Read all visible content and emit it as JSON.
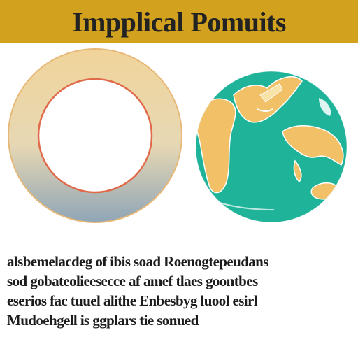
{
  "header": {
    "title": "Impplical Pomuits"
  },
  "caption": {
    "lines": [
      "alsbemelacdeg of ibis soad Roenogtepeudans",
      "sod gobateolieesecce af amef tlaes goontbes",
      "eserios fac tuuel alithe Enbesbyg luool esirl",
      "Mudoehgell is ggplars tie sonued"
    ]
  },
  "colors": {
    "banner": "#d2a21f",
    "ring_outer": "#f2d89a",
    "ring_inner_edge": "#e06a4a",
    "ocean": "#1fb39a",
    "land": "#f0c060"
  },
  "icons": {
    "ring": "ring-graphic",
    "globe": "globe-icon"
  }
}
